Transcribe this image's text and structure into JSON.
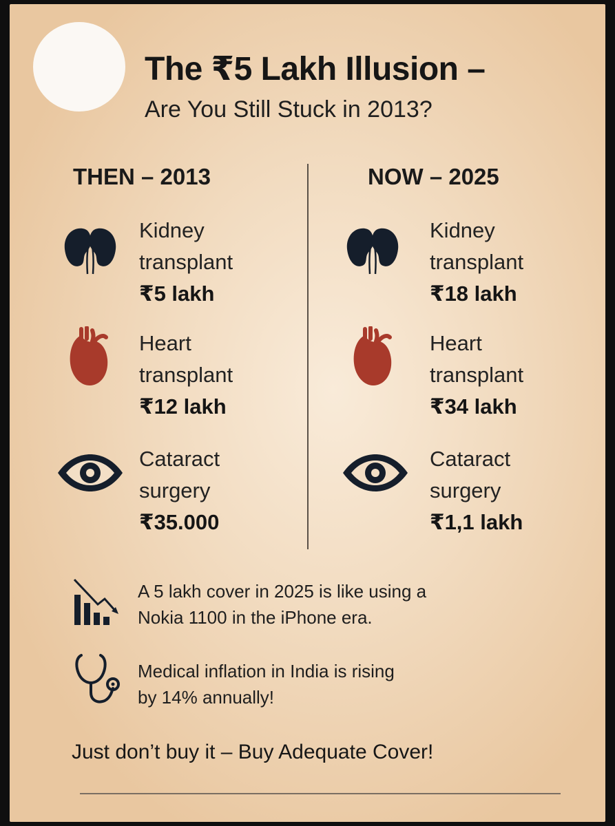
{
  "header": {
    "title": "The ₹5 Lakh Illusion –",
    "subtitle": "Are You Still Stuck in 2013?"
  },
  "columns": [
    {
      "heading": "THEN – 2013",
      "items": [
        {
          "icon": "kidney-icon",
          "name_line1": "Kidney",
          "name_line2": "transplant",
          "price": "₹5 lakh"
        },
        {
          "icon": "heart-icon",
          "name_line1": "Heart",
          "name_line2": "transplant",
          "price": "₹12 lakh"
        },
        {
          "icon": "eye-icon",
          "name_line1": "Cataract",
          "name_line2": "surgery",
          "price": "₹35.000"
        }
      ]
    },
    {
      "heading": "NOW – 2025",
      "items": [
        {
          "icon": "kidney-icon",
          "name_line1": "Kidney",
          "name_line2": "transplant",
          "price": "₹18 lakh"
        },
        {
          "icon": "heart-icon",
          "name_line1": "Heart",
          "name_line2": "transplant",
          "price": "₹34 lakh"
        },
        {
          "icon": "eye-icon",
          "name_line1": "Cataract",
          "name_line2": "surgery",
          "price": "₹1,1 lakh"
        }
      ]
    }
  ],
  "notes": [
    {
      "icon": "declining-chart-icon",
      "line1": "A 5 lakh cover in 2025 is like using a",
      "line2": "Nokia 1100 in the iPhone era."
    },
    {
      "icon": "stethoscope-icon",
      "line1": "Medical inflation in India is rising",
      "line2": "by 14% annually!"
    }
  ],
  "tagline": "Just don’t buy it – Buy Adequate Cover!",
  "colors": {
    "heart": "#a83a2b",
    "dark": "#151e2b"
  }
}
